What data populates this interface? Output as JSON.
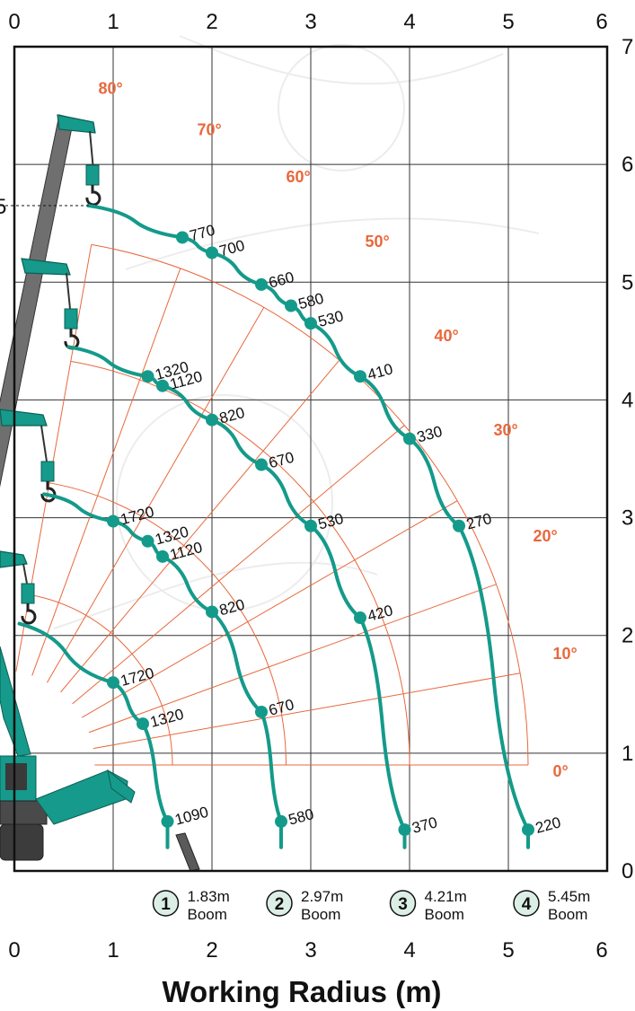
{
  "chart_data": {
    "type": "line",
    "title": "",
    "xlabel": "Working Radius (m)",
    "ylabel": "",
    "xlim": [
      0,
      6
    ],
    "ylim": [
      0,
      7
    ],
    "x_ticks": [
      "0",
      "1",
      "2",
      "3",
      "4",
      "5",
      "6"
    ],
    "y_ticks": [
      "0",
      "1",
      "2",
      "3",
      "4",
      "5",
      "6",
      "7"
    ],
    "left_marker": "5",
    "grid": true,
    "colors": {
      "curve": "#149a8a",
      "angle_lines": "#e8683c",
      "grid": "#333333",
      "crane": "#159a8b",
      "boom": "#6f6f6f"
    },
    "boom_angles": [
      {
        "label": "80°",
        "x": 0.85,
        "y": 6.6
      },
      {
        "label": "70°",
        "x": 1.85,
        "y": 6.25
      },
      {
        "label": "60°",
        "x": 2.75,
        "y": 5.85
      },
      {
        "label": "50°",
        "x": 3.55,
        "y": 5.3
      },
      {
        "label": "40°",
        "x": 4.25,
        "y": 4.5
      },
      {
        "label": "30°",
        "x": 4.85,
        "y": 3.7
      },
      {
        "label": "20°",
        "x": 5.25,
        "y": 2.8
      },
      {
        "label": "10°",
        "x": 5.45,
        "y": 1.8
      },
      {
        "label": "0°",
        "x": 5.45,
        "y": 0.8
      }
    ],
    "series": [
      {
        "boom_no": "1",
        "boom_length": "1.83m",
        "boom_word": "Boom",
        "arc_start": [
          0.05,
          2.1
        ],
        "arc_end": [
          1.55,
          0.2
        ],
        "points": [
          {
            "x": 1.0,
            "y": 1.6,
            "label": "1720"
          },
          {
            "x": 1.3,
            "y": 1.25,
            "label": "1320"
          },
          {
            "x": 1.55,
            "y": 0.42,
            "label": "1090"
          }
        ]
      },
      {
        "boom_no": "2",
        "boom_length": "2.97m",
        "boom_word": "Boom",
        "arc_start": [
          0.3,
          3.2
        ],
        "arc_end": [
          2.7,
          0.2
        ],
        "points": [
          {
            "x": 1.0,
            "y": 2.97,
            "label": "1720"
          },
          {
            "x": 1.35,
            "y": 2.8,
            "label": "1320"
          },
          {
            "x": 1.5,
            "y": 2.67,
            "label": "1120"
          },
          {
            "x": 2.0,
            "y": 2.2,
            "label": "820"
          },
          {
            "x": 2.5,
            "y": 1.35,
            "label": "670"
          },
          {
            "x": 2.7,
            "y": 0.42,
            "label": "580"
          }
        ]
      },
      {
        "boom_no": "3",
        "boom_length": "4.21m",
        "boom_word": "Boom",
        "arc_start": [
          0.55,
          4.45
        ],
        "arc_end": [
          3.95,
          0.2
        ],
        "points": [
          {
            "x": 1.35,
            "y": 4.2,
            "label": "1320"
          },
          {
            "x": 1.5,
            "y": 4.12,
            "label": "1120"
          },
          {
            "x": 2.0,
            "y": 3.83,
            "label": "820"
          },
          {
            "x": 2.5,
            "y": 3.45,
            "label": "670"
          },
          {
            "x": 3.0,
            "y": 2.93,
            "label": "530"
          },
          {
            "x": 3.5,
            "y": 2.15,
            "label": "420"
          },
          {
            "x": 3.95,
            "y": 0.35,
            "label": "370"
          }
        ]
      },
      {
        "boom_no": "4",
        "boom_length": "5.45m",
        "boom_word": "Boom",
        "arc_start": [
          0.75,
          5.65
        ],
        "arc_end": [
          5.2,
          0.2
        ],
        "points": [
          {
            "x": 1.7,
            "y": 5.38,
            "label": "770"
          },
          {
            "x": 2.0,
            "y": 5.25,
            "label": "700"
          },
          {
            "x": 2.5,
            "y": 4.98,
            "label": "660"
          },
          {
            "x": 2.8,
            "y": 4.8,
            "label": "580"
          },
          {
            "x": 3.0,
            "y": 4.65,
            "label": "530"
          },
          {
            "x": 3.5,
            "y": 4.2,
            "label": "410"
          },
          {
            "x": 4.0,
            "y": 3.67,
            "label": "330"
          },
          {
            "x": 4.5,
            "y": 2.93,
            "label": "270"
          },
          {
            "x": 5.2,
            "y": 0.35,
            "label": "220"
          }
        ]
      }
    ]
  }
}
